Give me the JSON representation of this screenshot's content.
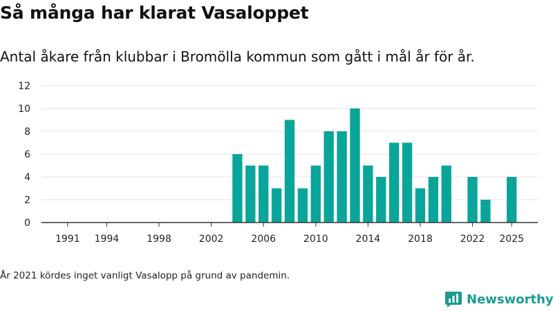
{
  "header": {
    "title": "Så många har klarat Vasaloppet",
    "subtitle": "Antal åkare från klubbar i Bromölla kommun som gått i mål år för år."
  },
  "footnote": "År 2021 kördes inget vanligt Vasalopp på grund av pandemin.",
  "brand": {
    "name": "Newsworthy",
    "icon": "newsworthy-logo-icon"
  },
  "colors": {
    "bar": "#0aa59a",
    "grid": "#e3e3e3",
    "axis": "#333333",
    "brand": "#1a9c8f"
  },
  "chart_data": {
    "type": "bar",
    "title": "Så många har klarat Vasaloppet",
    "xlabel": "",
    "ylabel": "",
    "ylim": [
      0,
      12
    ],
    "yticks": [
      0,
      2,
      4,
      6,
      8,
      10,
      12
    ],
    "xlim": [
      1989,
      2027
    ],
    "xticks": [
      1991,
      1994,
      1998,
      2002,
      2006,
      2010,
      2014,
      2018,
      2022,
      2025
    ],
    "grid": true,
    "x": [
      2004,
      2005,
      2006,
      2007,
      2008,
      2009,
      2010,
      2011,
      2012,
      2013,
      2014,
      2015,
      2016,
      2017,
      2018,
      2019,
      2020,
      2022,
      2023,
      2025
    ],
    "values": [
      6,
      5,
      5,
      3,
      9,
      3,
      5,
      8,
      8,
      10,
      5,
      4,
      7,
      7,
      3,
      4,
      5,
      4,
      2,
      4
    ]
  }
}
